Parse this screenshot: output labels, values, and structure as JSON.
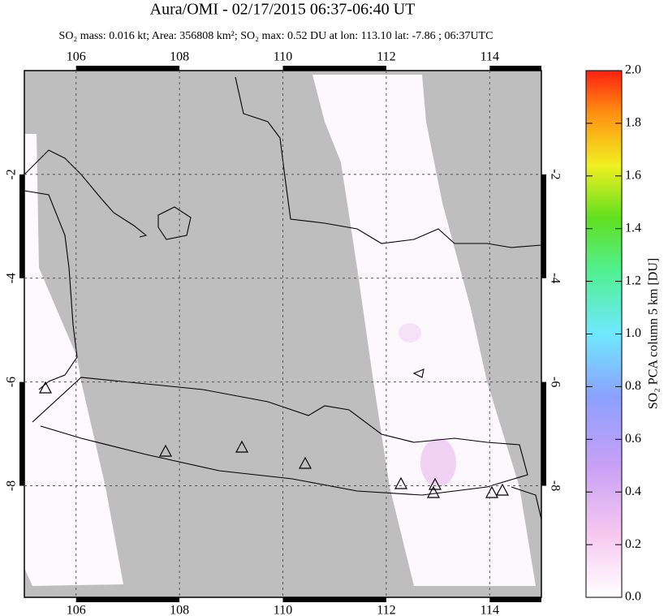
{
  "title": "Aura/OMI - 02/17/2015 06:37-06:40 UT",
  "subtitle": "SO₂ mass: 0.016 kt; Area: 356808 km²; SO₂ max: 0.52 DU at lon: 113.10 lat: -7.86 ; 06:37UTC",
  "map": {
    "xlim": [
      105,
      115
    ],
    "ylim": [
      0,
      -10.15
    ],
    "xticks": [
      106,
      108,
      110,
      112,
      114
    ],
    "yticks": [
      -2,
      -4,
      -6,
      -8
    ],
    "grid": true
  },
  "colorbar": {
    "label": "SO₂ PCA column 5 km [DU]",
    "ylim": [
      0,
      2
    ],
    "yticks": [
      {
        "value": 0,
        "label": "0.0"
      },
      0.2,
      0.4,
      0.6,
      0.8,
      {
        "value": 1,
        "label": "1.0"
      },
      1.2,
      1.4,
      1.6,
      1.8,
      {
        "value": 2,
        "label": "2.0"
      }
    ]
  }
}
